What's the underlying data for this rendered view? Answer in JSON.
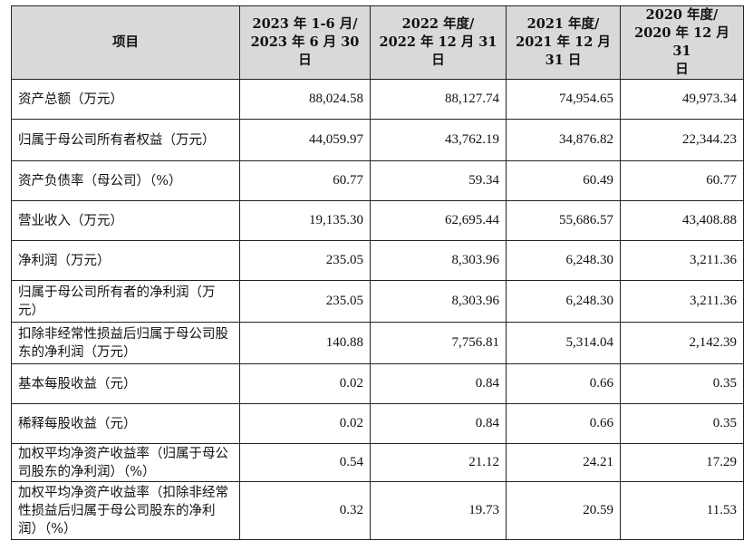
{
  "headers": [
    "项目",
    "2023 年 1-6 月/\n2023 年 6 月 30\n日",
    "2022 年度/\n2022 年 12 月 31\n日",
    "2021 年度/\n2021 年 12 月\n31 日",
    "2020 年度/\n2020 年 12 月 31\n日"
  ],
  "rows": [
    {
      "label": "资产总额（万元）",
      "values": [
        "88,024.58",
        "88,127.74",
        "74,954.65",
        "49,973.34"
      ]
    },
    {
      "label": "归属于母公司所有者权益（万元）",
      "values": [
        "44,059.97",
        "43,762.19",
        "34,876.82",
        "22,344.23"
      ]
    },
    {
      "label": "资产负债率（母公司）（%）",
      "values": [
        "60.77",
        "59.34",
        "60.49",
        "60.77"
      ]
    },
    {
      "label": "营业收入（万元）",
      "values": [
        "19,135.30",
        "62,695.44",
        "55,686.57",
        "43,408.88"
      ]
    },
    {
      "label": "净利润（万元）",
      "values": [
        "235.05",
        "8,303.96",
        "6,248.30",
        "3,211.36"
      ]
    },
    {
      "label": "归属于母公司所有者的净利润（万元）",
      "values": [
        "235.05",
        "8,303.96",
        "6,248.30",
        "3,211.36"
      ]
    },
    {
      "label": "扣除非经常性损益后归属于母公司股东的净利润（万元）",
      "values": [
        "140.88",
        "7,756.81",
        "5,314.04",
        "2,142.39"
      ]
    },
    {
      "label": "基本每股收益（元）",
      "values": [
        "0.02",
        "0.84",
        "0.66",
        "0.35"
      ]
    },
    {
      "label": "稀释每股收益（元）",
      "values": [
        "0.02",
        "0.84",
        "0.66",
        "0.35"
      ]
    },
    {
      "label": "加权平均净资产收益率（归属于母公司股东的净利润）（%）",
      "values": [
        "0.54",
        "21.12",
        "24.21",
        "17.29"
      ]
    },
    {
      "label": "加权平均净资产收益率（扣除非经常性损益后归属于母公司股东的净利润）（%）",
      "values": [
        "0.32",
        "19.73",
        "20.59",
        "11.53"
      ]
    }
  ]
}
